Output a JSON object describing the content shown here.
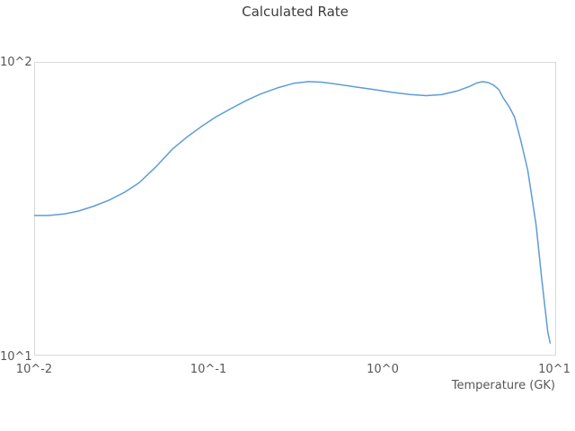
{
  "header": {
    "title": "Calculated Rate"
  },
  "axes": {
    "x": {
      "label": "Temperature (GK)",
      "ticks": [
        "10^-2",
        "10^-1",
        "10^0",
        "10^1"
      ]
    },
    "y": {
      "ticks": [
        "10^1",
        "10^2"
      ]
    }
  },
  "colors": {
    "line": "#5e9bd9",
    "plot_border": "#d9d9d9",
    "title_text": "#3d3d3d",
    "tick_text": "#575757",
    "background": "#ffffff"
  },
  "chart_data": {
    "type": "line",
    "title": "Calculated Rate",
    "xlabel": "Temperature (GK)",
    "ylabel": "",
    "x_scale": "log",
    "y_scale": "log",
    "xlim": [
      0.01,
      10
    ],
    "ylim": [
      10,
      100
    ],
    "x_tick_labels": [
      "10^-2",
      "10^-1",
      "10^0",
      "10^1"
    ],
    "y_tick_labels": [
      "10^1",
      "10^2"
    ],
    "grid": false,
    "legend": false,
    "series": [
      {
        "name": "Calculated Rate",
        "color": "#5e9bd9",
        "x": [
          0.01,
          0.012,
          0.015,
          0.018,
          0.022,
          0.027,
          0.033,
          0.04,
          0.05,
          0.062,
          0.075,
          0.09,
          0.11,
          0.135,
          0.165,
          0.2,
          0.25,
          0.31,
          0.38,
          0.45,
          0.55,
          0.7,
          0.9,
          1.15,
          1.45,
          1.8,
          2.2,
          2.7,
          3.2,
          3.5,
          3.8,
          4.1,
          4.4,
          4.7,
          5.0,
          5.4,
          5.8,
          6.3,
          6.9,
          7.3,
          7.7,
          8.0,
          8.3,
          8.65,
          9.0,
          9.3
        ],
        "y": [
          30.0,
          30.0,
          30.4,
          31.1,
          32.3,
          33.9,
          36.0,
          38.8,
          44.0,
          50.5,
          55.5,
          60.0,
          65.0,
          69.5,
          74.0,
          78.0,
          81.8,
          84.8,
          86.0,
          85.6,
          84.3,
          82.5,
          80.8,
          79.0,
          77.7,
          77.0,
          77.6,
          79.8,
          82.8,
          85.0,
          86.0,
          85.3,
          83.6,
          80.8,
          75.5,
          70.5,
          65.0,
          54.0,
          43.0,
          34.5,
          28.0,
          22.6,
          18.3,
          14.8,
          12.0,
          11.0
        ]
      }
    ]
  }
}
